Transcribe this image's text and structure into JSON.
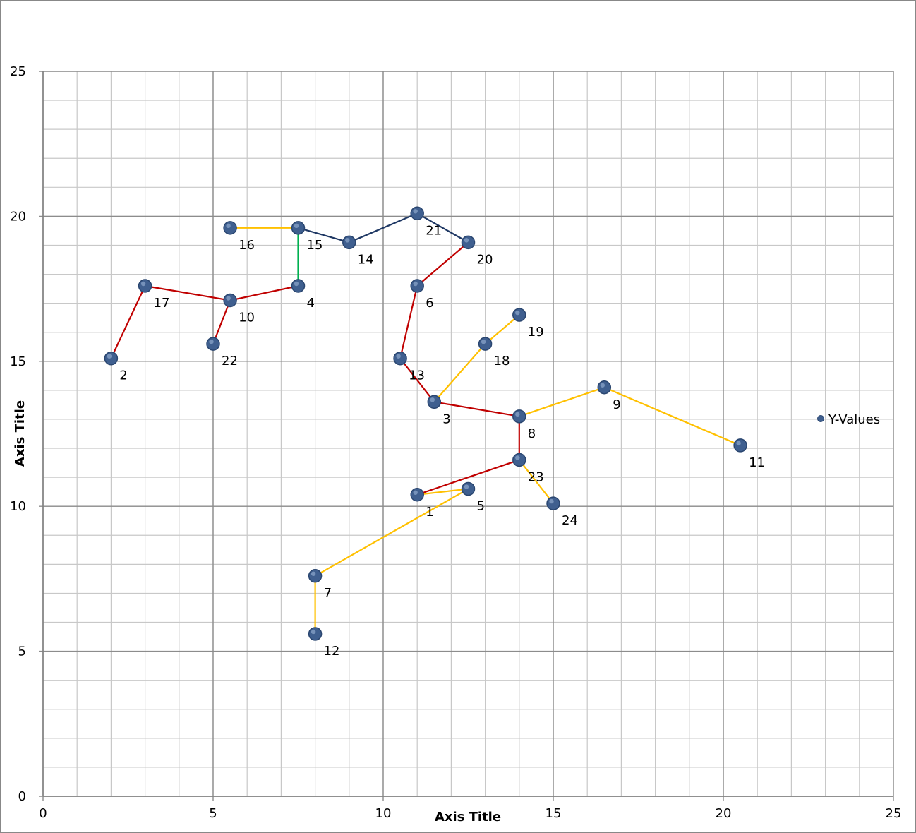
{
  "chart_data": {
    "type": "scatter",
    "xlabel": "Axis Title",
    "ylabel": "Axis Title",
    "xlim": [
      0,
      25
    ],
    "ylim": [
      0,
      25
    ],
    "xticks": [
      0,
      5,
      10,
      15,
      20,
      25
    ],
    "yticks": [
      0,
      5,
      10,
      15,
      20,
      25
    ],
    "x_minor_step": 1,
    "y_minor_step": 1,
    "grid": true,
    "legend": {
      "position": "right",
      "entries": [
        "Y-Values"
      ]
    },
    "marker_color": "#3F5F8F",
    "series": [
      {
        "name": "Y-Values",
        "points": [
          {
            "label": "1",
            "x": 11,
            "y": 10.4
          },
          {
            "label": "2",
            "x": 2,
            "y": 15.1
          },
          {
            "label": "3",
            "x": 11.5,
            "y": 13.6
          },
          {
            "label": "4",
            "x": 7.5,
            "y": 17.6
          },
          {
            "label": "5",
            "x": 12.5,
            "y": 10.6
          },
          {
            "label": "6",
            "x": 11,
            "y": 17.6
          },
          {
            "label": "7",
            "x": 8,
            "y": 7.6
          },
          {
            "label": "8",
            "x": 14,
            "y": 13.1
          },
          {
            "label": "9",
            "x": 16.5,
            "y": 14.1
          },
          {
            "label": "10",
            "x": 5.5,
            "y": 17.1
          },
          {
            "label": "11",
            "x": 20.5,
            "y": 12.1
          },
          {
            "label": "12",
            "x": 8,
            "y": 5.6
          },
          {
            "label": "13",
            "x": 10.5,
            "y": 15.1
          },
          {
            "label": "14",
            "x": 9,
            "y": 19.1
          },
          {
            "label": "15",
            "x": 7.5,
            "y": 19.6
          },
          {
            "label": "16",
            "x": 5.5,
            "y": 19.6
          },
          {
            "label": "17",
            "x": 3,
            "y": 17.6
          },
          {
            "label": "18",
            "x": 13,
            "y": 15.6
          },
          {
            "label": "19",
            "x": 14,
            "y": 16.6
          },
          {
            "label": "20",
            "x": 12.5,
            "y": 19.1
          },
          {
            "label": "21",
            "x": 11,
            "y": 20.1
          },
          {
            "label": "22",
            "x": 5,
            "y": 15.6
          },
          {
            "label": "23",
            "x": 14,
            "y": 11.6
          },
          {
            "label": "24",
            "x": 15,
            "y": 10.1
          }
        ]
      }
    ],
    "connectors": [
      {
        "color": "#C00000",
        "from": "2",
        "to": "17"
      },
      {
        "color": "#C00000",
        "from": "17",
        "to": "10"
      },
      {
        "color": "#C00000",
        "from": "10",
        "to": "22"
      },
      {
        "color": "#C00000",
        "from": "10",
        "to": "4"
      },
      {
        "color": "#00B050",
        "from": "4",
        "to": "15"
      },
      {
        "color": "#FFC000",
        "from": "16",
        "to": "15"
      },
      {
        "color": "#1F3864",
        "from": "15",
        "to": "14"
      },
      {
        "color": "#1F3864",
        "from": "14",
        "to": "21"
      },
      {
        "color": "#1F3864",
        "from": "21",
        "to": "20"
      },
      {
        "color": "#C00000",
        "from": "20",
        "to": "6"
      },
      {
        "color": "#C00000",
        "from": "6",
        "to": "13"
      },
      {
        "color": "#C00000",
        "from": "13",
        "to": "3"
      },
      {
        "color": "#C00000",
        "from": "3",
        "to": "8"
      },
      {
        "color": "#C00000",
        "from": "8",
        "to": "23"
      },
      {
        "color": "#C00000",
        "from": "23",
        "to": "1"
      },
      {
        "color": "#FFC000",
        "from": "3",
        "to": "18"
      },
      {
        "color": "#FFC000",
        "from": "18",
        "to": "19"
      },
      {
        "color": "#FFC000",
        "from": "8",
        "to": "9"
      },
      {
        "color": "#FFC000",
        "from": "9",
        "to": "11"
      },
      {
        "color": "#FFC000",
        "from": "23",
        "to": "24"
      },
      {
        "color": "#FFC000",
        "from": "1",
        "to": "5"
      },
      {
        "color": "#FFC000",
        "from": "5",
        "to": "7"
      },
      {
        "color": "#FFC000",
        "from": "7",
        "to": "12"
      }
    ]
  }
}
